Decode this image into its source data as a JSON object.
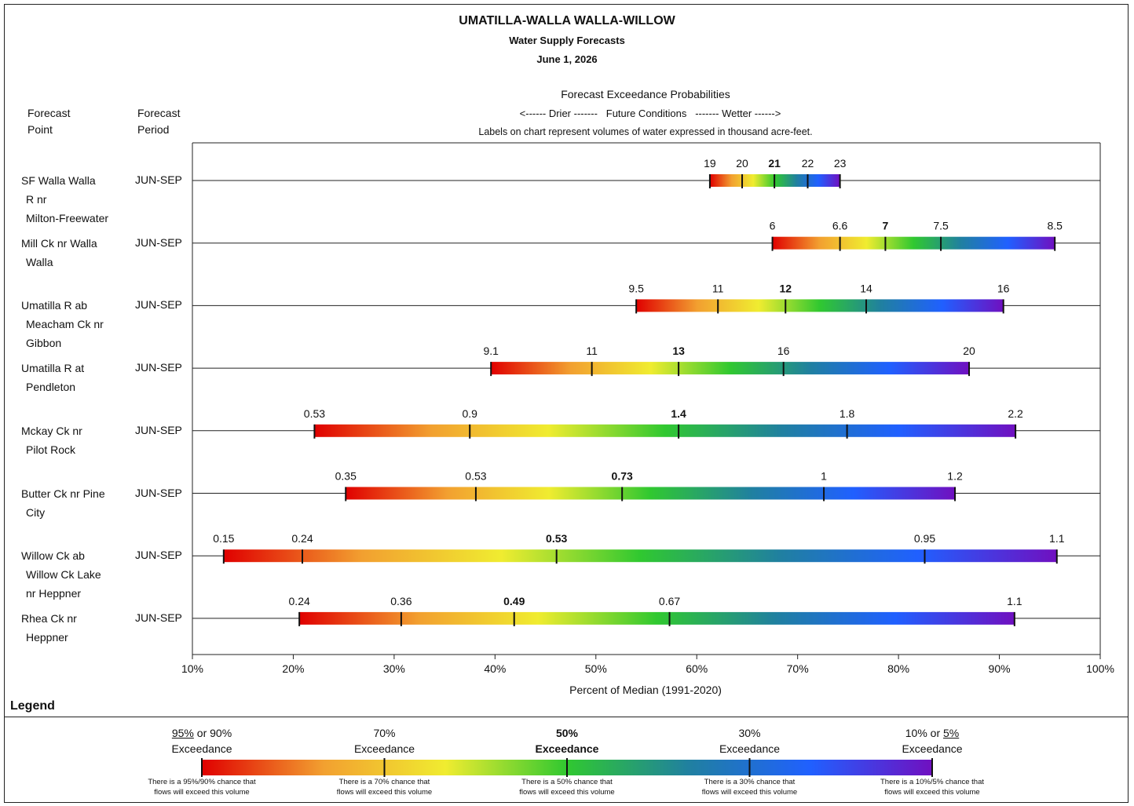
{
  "header": {
    "title": "UMATILLA-WALLA WALLA-WILLOW",
    "subtitle": "Water Supply Forecasts",
    "date": "June 1, 2026"
  },
  "columns": {
    "point_line1": "Forecast",
    "point_line2": "Point",
    "period_line1": "Forecast",
    "period_line2": "Period"
  },
  "exceedance_header": {
    "title": "Forecast Exceedance Probabilities",
    "direction": "<------ Drier -------   Future Conditions   ------- Wetter ------>",
    "note": "Labels on chart represent volumes of water expressed in thousand acre-feet."
  },
  "legend": {
    "title": "Legend",
    "items": [
      {
        "head_u": "95%",
        "head_rest": " or 90%",
        "head2": "Exceedance",
        "note1": "There is a 95%/90% chance that",
        "note2": "flows will exceed this volume"
      },
      {
        "head_u": "",
        "head_rest": "70%",
        "head2": "Exceedance",
        "note1": "There is a 70% chance that",
        "note2": "flows will exceed this volume"
      },
      {
        "head_u": "",
        "head_rest": "50%",
        "head2": "Exceedance",
        "note1": "There is a 50% chance that",
        "note2": "flows will exceed this volume"
      },
      {
        "head_u": "",
        "head_rest": "30%",
        "head2": "Exceedance",
        "note1": "There is a 30% chance that",
        "note2": "flows will exceed this volume"
      },
      {
        "head_pre": "10% or ",
        "head_u": "5%",
        "head_rest": "",
        "head2": "Exceedance",
        "note1": "There is a 10%/5% chance that",
        "note2": "flows will exceed this volume"
      }
    ]
  },
  "chart_data": {
    "type": "range-bar",
    "xlabel": "Percent of Median (1991-2020)",
    "xlim": [
      10,
      100
    ],
    "xticks": [
      "10%",
      "20%",
      "30%",
      "40%",
      "50%",
      "60%",
      "70%",
      "80%",
      "90%",
      "100%"
    ],
    "gradient_colors": [
      "#e00000",
      "#f2a030",
      "#f0ec30",
      "#30c830",
      "#2080a0",
      "#2060ff",
      "#7010c0"
    ],
    "series_labels": [
      "95%/90% Exceedance",
      "70% Exceedance",
      "50% Exceedance",
      "30% Exceedance",
      "10%/5% Exceedance"
    ],
    "rows": [
      {
        "point": [
          "SF Walla Walla",
          "R nr",
          "Milton-Freewater"
        ],
        "period": "JUN-SEP",
        "percents": [
          61.3,
          64.5,
          67.7,
          71.0,
          74.2
        ],
        "labels": [
          "19",
          "20",
          "21",
          "22",
          "23"
        ]
      },
      {
        "point": [
          "Mill Ck nr Walla",
          "Walla"
        ],
        "period": "JUN-SEP",
        "percents": [
          67.5,
          74.2,
          78.7,
          84.2,
          95.5
        ],
        "labels": [
          "6",
          "6.6",
          "7",
          "7.5",
          "8.5"
        ]
      },
      {
        "point": [
          "Umatilla R ab",
          "Meacham Ck nr",
          "Gibbon"
        ],
        "period": "JUN-SEP",
        "percents": [
          54.0,
          62.1,
          68.8,
          76.8,
          90.4
        ],
        "labels": [
          "9.5",
          "11",
          "12",
          "14",
          "16"
        ]
      },
      {
        "point": [
          "Umatilla R at",
          "Pendleton"
        ],
        "period": "JUN-SEP",
        "percents": [
          39.6,
          49.6,
          58.2,
          68.6,
          87.0
        ],
        "labels": [
          "9.1",
          "11",
          "13",
          "16",
          "20"
        ]
      },
      {
        "point": [
          "Mckay Ck nr",
          "Pilot Rock"
        ],
        "period": "JUN-SEP",
        "percents": [
          22.1,
          37.5,
          58.2,
          74.9,
          91.6
        ],
        "labels": [
          "0.53",
          "0.9",
          "1.4",
          "1.8",
          "2.2"
        ]
      },
      {
        "point": [
          "Butter Ck nr Pine",
          "City"
        ],
        "period": "JUN-SEP",
        "percents": [
          25.2,
          38.1,
          52.6,
          72.6,
          85.6
        ],
        "labels": [
          "0.35",
          "0.53",
          "0.73",
          "1",
          "1.2"
        ]
      },
      {
        "point": [
          "Willow Ck ab",
          "Willow Ck Lake",
          "nr Heppner"
        ],
        "period": "JUN-SEP",
        "percents": [
          13.1,
          20.9,
          46.1,
          82.6,
          95.7
        ],
        "labels": [
          "0.15",
          "0.24",
          "0.53",
          "0.95",
          "1.1"
        ]
      },
      {
        "point": [
          "Rhea Ck nr",
          "Heppner"
        ],
        "period": "JUN-SEP",
        "percents": [
          20.6,
          30.7,
          41.9,
          57.3,
          91.5
        ],
        "labels": [
          "0.24",
          "0.36",
          "0.49",
          "0.67",
          "1.1"
        ]
      }
    ]
  }
}
